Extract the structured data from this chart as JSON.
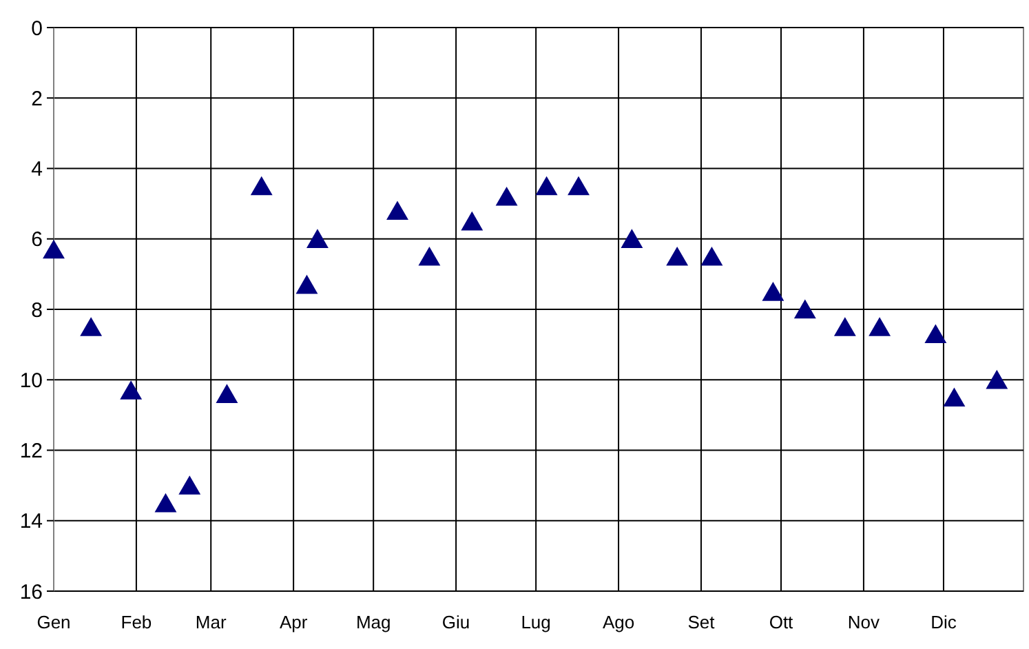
{
  "chart_data": {
    "type": "scatter",
    "marker": "triangle",
    "grid": true,
    "x": [
      "--01-01",
      "--01-15",
      "--01-30",
      "--02-12",
      "--02-21",
      "--03-07",
      "--03-20",
      "--04-06",
      "--04-10",
      "--05-10",
      "--05-22",
      "--06-07",
      "--06-20",
      "--07-05",
      "--07-17",
      "--08-06",
      "--08-23",
      "--09-05",
      "--09-28",
      "--10-10",
      "--10-25",
      "--11-07",
      "--11-28",
      "--12-05",
      "--12-21"
    ],
    "series": [
      {
        "color": "#000080",
        "values": [
          6.3,
          8.5,
          10.3,
          13.5,
          13.0,
          10.4,
          4.5,
          7.3,
          6.0,
          5.2,
          6.5,
          5.5,
          4.8,
          4.5,
          4.5,
          6.0,
          6.5,
          6.5,
          7.5,
          8.0,
          8.5,
          8.5,
          8.7,
          10.5,
          10.0
        ]
      }
    ],
    "xlim": [
      "--01-01",
      "--12-31"
    ],
    "xticks": [
      {
        "value": "--01-01",
        "label": "Gen"
      },
      {
        "value": "--02-01",
        "label": "Feb"
      },
      {
        "value": "--03-01",
        "label": "Mar"
      },
      {
        "value": "--04-01",
        "label": "Apr"
      },
      {
        "value": "--05-01",
        "label": "Mag"
      },
      {
        "value": "--06-01",
        "label": "Giu"
      },
      {
        "value": "--07-01",
        "label": "Lug"
      },
      {
        "value": "--08-01",
        "label": "Ago"
      },
      {
        "value": "--09-01",
        "label": "Set"
      },
      {
        "value": "--10-01",
        "label": "Ott"
      },
      {
        "value": "--11-01",
        "label": "Nov"
      },
      {
        "value": "--12-01",
        "label": "Dic"
      }
    ],
    "ylim": [
      16,
      0
    ],
    "yticks": [
      0,
      2,
      4,
      6,
      8,
      10,
      12,
      14,
      16
    ]
  }
}
